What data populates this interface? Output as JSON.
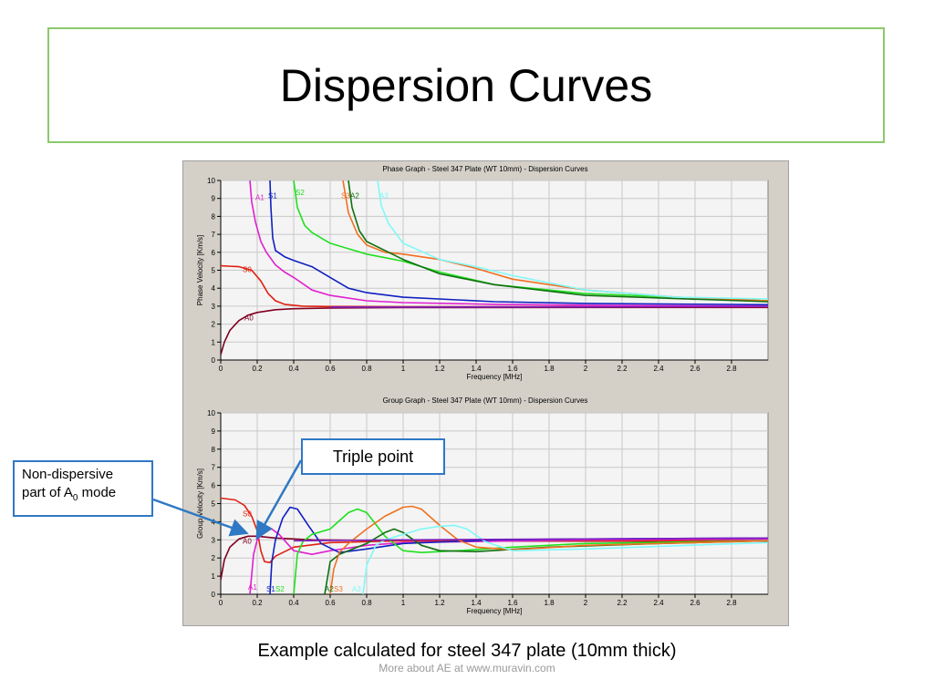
{
  "slide": {
    "title": "Dispersion Curves",
    "caption": "Example calculated for steel 347 plate (10mm thick)",
    "footer": "More about AE at www.muravin.com"
  },
  "callouts": {
    "non_dispersive_line1": "Non-dispersive",
    "non_dispersive_line2_prefix": "part of A",
    "non_dispersive_sub": "0",
    "non_dispersive_line2_suffix": " mode",
    "triple_point": "Triple point"
  },
  "colors": {
    "frame_green": "#8cc96a",
    "callout_blue": "#2f78c4"
  },
  "chart_data": [
    {
      "type": "line",
      "title": "Phase Graph - Steel 347 Plate (WT 10mm) - Dispersion Curves",
      "xlabel": "Frequency [MHz]",
      "ylabel": "Phase Velocity [Km/s]",
      "xlim": [
        0,
        3.0
      ],
      "ylim": [
        0,
        10
      ],
      "xticks": [
        0,
        0.2,
        0.4,
        0.6,
        0.8,
        1,
        1.2,
        1.4,
        1.6,
        1.8,
        2,
        2.2,
        2.4,
        2.6,
        2.8
      ],
      "yticks": [
        0,
        1,
        2,
        3,
        4,
        5,
        6,
        7,
        8,
        9,
        10
      ],
      "grid": true,
      "series": [
        {
          "name": "A0",
          "color": "#800020",
          "label_at": [
            0.13,
            2.2
          ],
          "x": [
            0.0,
            0.02,
            0.05,
            0.1,
            0.15,
            0.2,
            0.3,
            0.4,
            0.6,
            1.0,
            2.0,
            3.0
          ],
          "y": [
            0.3,
            1.0,
            1.65,
            2.2,
            2.5,
            2.65,
            2.8,
            2.86,
            2.9,
            2.92,
            2.93,
            2.93
          ]
        },
        {
          "name": "S0",
          "color": "#e02010",
          "label_at": [
            0.12,
            4.9
          ],
          "x": [
            0.0,
            0.1,
            0.17,
            0.22,
            0.26,
            0.3,
            0.35,
            0.45,
            0.6,
            1.0,
            3.0
          ],
          "y": [
            5.25,
            5.2,
            5.0,
            4.4,
            3.7,
            3.3,
            3.1,
            3.0,
            2.98,
            2.97,
            2.97
          ]
        },
        {
          "name": "A1",
          "color": "#e020d0",
          "label_at": [
            0.19,
            8.9
          ],
          "x": [
            0.16,
            0.17,
            0.19,
            0.22,
            0.25,
            0.3,
            0.35,
            0.4,
            0.5,
            0.6,
            0.8,
            1.0,
            1.5,
            2.0,
            3.0
          ],
          "y": [
            10,
            8.8,
            7.7,
            6.6,
            6.0,
            5.3,
            4.9,
            4.6,
            3.9,
            3.6,
            3.3,
            3.2,
            3.1,
            3.05,
            3.0
          ]
        },
        {
          "name": "S1",
          "color": "#1020c0",
          "label_at": [
            0.26,
            9.0
          ],
          "x": [
            0.27,
            0.275,
            0.285,
            0.3,
            0.35,
            0.4,
            0.5,
            0.6,
            0.7,
            0.8,
            1.0,
            1.5,
            2.0,
            3.0
          ],
          "y": [
            10,
            8.5,
            6.8,
            6.1,
            5.75,
            5.55,
            5.2,
            4.6,
            4.0,
            3.75,
            3.5,
            3.25,
            3.15,
            3.08
          ]
        },
        {
          "name": "S2",
          "color": "#20e020",
          "label_at": [
            0.41,
            9.2
          ],
          "x": [
            0.4,
            0.42,
            0.46,
            0.5,
            0.6,
            0.7,
            0.8,
            0.9,
            1.0,
            1.2,
            1.5,
            2.0,
            3.0
          ],
          "y": [
            10,
            8.5,
            7.5,
            7.1,
            6.5,
            6.2,
            5.9,
            5.7,
            5.5,
            4.9,
            4.2,
            3.7,
            3.3
          ]
        },
        {
          "name": "S3",
          "color": "#f07020",
          "label_at": [
            0.66,
            9.0
          ],
          "x": [
            0.67,
            0.7,
            0.75,
            0.8,
            0.9,
            1.0,
            1.2,
            1.4,
            1.6,
            2.0,
            2.5,
            3.0
          ],
          "y": [
            10,
            8.2,
            7.0,
            6.4,
            6.0,
            5.9,
            5.6,
            5.1,
            4.5,
            3.9,
            3.5,
            3.3
          ]
        },
        {
          "name": "A2",
          "color": "#107010",
          "label_at": [
            0.71,
            9.0
          ],
          "x": [
            0.7,
            0.72,
            0.76,
            0.8,
            0.9,
            1.0,
            1.2,
            1.5,
            2.0,
            3.0
          ],
          "y": [
            10,
            8.5,
            7.2,
            6.6,
            6.1,
            5.6,
            4.8,
            4.2,
            3.6,
            3.25
          ]
        },
        {
          "name": "A3",
          "color": "#80f8f8",
          "label_at": [
            0.87,
            9.0
          ],
          "x": [
            0.86,
            0.88,
            0.92,
            1.0,
            1.2,
            1.4,
            1.6,
            2.0,
            2.5,
            3.0
          ],
          "y": [
            10,
            8.6,
            7.6,
            6.5,
            5.6,
            5.2,
            4.7,
            3.9,
            3.5,
            3.4
          ]
        },
        {
          "name": "",
          "color": "#8020c0",
          "x": [
            0.6,
            1.0,
            2.0,
            3.0
          ],
          "y": [
            2.95,
            2.95,
            2.96,
            2.98
          ]
        }
      ]
    },
    {
      "type": "line",
      "title": "Group Graph - Steel 347 Plate (WT 10mm) - Dispersion Curves",
      "xlabel": "Frequency [MHz]",
      "ylabel": "Group Velocity [Km/s]",
      "xlim": [
        0,
        3.0
      ],
      "ylim": [
        0,
        10
      ],
      "xticks": [
        0,
        0.2,
        0.4,
        0.6,
        0.8,
        1,
        1.2,
        1.4,
        1.6,
        1.8,
        2,
        2.2,
        2.4,
        2.6,
        2.8
      ],
      "yticks": [
        0,
        1,
        2,
        3,
        4,
        5,
        6,
        7,
        8,
        9,
        10
      ],
      "grid": true,
      "series": [
        {
          "name": "A0",
          "color": "#800020",
          "label_at": [
            0.12,
            2.8
          ],
          "x": [
            0.0,
            0.02,
            0.05,
            0.1,
            0.15,
            0.2,
            0.3,
            0.5,
            1.0,
            2.0,
            3.0
          ],
          "y": [
            0.8,
            1.9,
            2.6,
            3.05,
            3.2,
            3.2,
            3.1,
            3.0,
            2.95,
            2.93,
            2.93
          ]
        },
        {
          "name": "S0",
          "color": "#e02010",
          "label_at": [
            0.12,
            4.3
          ],
          "x": [
            0.0,
            0.08,
            0.13,
            0.17,
            0.2,
            0.22,
            0.24,
            0.27,
            0.3,
            0.4,
            0.6,
            1.0,
            3.0
          ],
          "y": [
            5.3,
            5.2,
            4.9,
            4.3,
            3.5,
            2.4,
            1.8,
            1.75,
            2.1,
            2.6,
            2.85,
            2.95,
            2.95
          ]
        },
        {
          "name": "A1",
          "color": "#e020d0",
          "label_at": [
            0.15,
            0.25
          ],
          "x": [
            0.16,
            0.18,
            0.2,
            0.24,
            0.28,
            0.32,
            0.4,
            0.5,
            0.6,
            0.8,
            1.0,
            2.0,
            3.0
          ],
          "y": [
            0,
            2.2,
            3.0,
            3.5,
            3.6,
            3.3,
            2.4,
            2.2,
            2.4,
            2.7,
            2.85,
            3.0,
            3.05
          ]
        },
        {
          "name": "S1",
          "color": "#1020c0",
          "label_at": [
            0.25,
            0.15
          ],
          "x": [
            0.27,
            0.28,
            0.3,
            0.34,
            0.38,
            0.42,
            0.48,
            0.55,
            0.65,
            0.8,
            1.0,
            1.5,
            2.0,
            3.0
          ],
          "y": [
            0,
            1.8,
            3.0,
            4.2,
            4.8,
            4.7,
            3.8,
            2.8,
            2.3,
            2.5,
            2.8,
            3.0,
            3.05,
            3.1
          ]
        },
        {
          "name": "S2",
          "color": "#20e020",
          "label_at": [
            0.3,
            0.15
          ],
          "x": [
            0.4,
            0.42,
            0.45,
            0.5,
            0.6,
            0.7,
            0.75,
            0.8,
            0.9,
            1.0,
            1.1,
            1.3,
            1.6,
            2.0,
            3.0
          ],
          "y": [
            0,
            2.2,
            2.9,
            3.3,
            3.6,
            4.5,
            4.7,
            4.5,
            3.2,
            2.4,
            2.3,
            2.4,
            2.6,
            2.8,
            2.95
          ]
        },
        {
          "name": "A2",
          "color": "#107010",
          "label_at": [
            0.57,
            0.15
          ],
          "x": [
            0.57,
            0.6,
            0.65,
            0.7,
            0.8,
            0.9,
            0.95,
            1.0,
            1.1,
            1.2,
            1.4,
            1.8,
            2.4,
            3.0
          ],
          "y": [
            0,
            1.8,
            2.2,
            2.4,
            2.8,
            3.4,
            3.6,
            3.4,
            2.7,
            2.4,
            2.35,
            2.6,
            2.8,
            2.95
          ]
        },
        {
          "name": "S3",
          "color": "#f07020",
          "label_at": [
            0.62,
            0.15
          ],
          "x": [
            0.6,
            0.62,
            0.65,
            0.7,
            0.8,
            0.9,
            1.0,
            1.05,
            1.1,
            1.2,
            1.3,
            1.4,
            1.6,
            2.0,
            3.0
          ],
          "y": [
            0,
            1.4,
            2.3,
            2.8,
            3.6,
            4.3,
            4.8,
            4.85,
            4.7,
            3.8,
            3.0,
            2.6,
            2.45,
            2.7,
            2.95
          ]
        },
        {
          "name": "A3",
          "color": "#80f8f8",
          "label_at": [
            0.72,
            0.15
          ],
          "x": [
            0.78,
            0.8,
            0.85,
            0.9,
            1.0,
            1.1,
            1.2,
            1.28,
            1.35,
            1.45,
            1.6,
            2.0,
            3.0
          ],
          "y": [
            0,
            1.6,
            2.7,
            3.0,
            3.3,
            3.6,
            3.75,
            3.8,
            3.6,
            2.9,
            2.4,
            2.5,
            2.85
          ]
        },
        {
          "name": "",
          "color": "#8020c0",
          "x": [
            0.4,
            1.0,
            2.0,
            3.0
          ],
          "y": [
            2.95,
            3.0,
            3.05,
            3.1
          ]
        }
      ]
    }
  ]
}
